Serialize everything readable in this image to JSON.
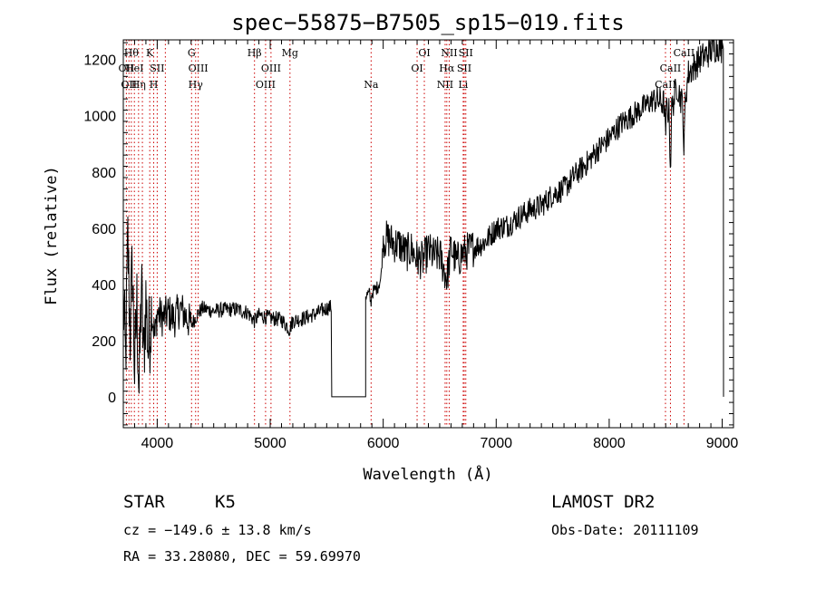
{
  "chart_data": {
    "type": "line",
    "title": "spec−55875−B7505_sp15−019.fits",
    "xlabel": "Wavelength (Å)",
    "ylabel": "Flux (relative)",
    "xlim": [
      3700,
      9100
    ],
    "ylim": [
      -110,
      1270
    ],
    "xticks": [
      4000,
      5000,
      6000,
      7000,
      8000,
      9000
    ],
    "yticks": [
      0,
      200,
      400,
      600,
      800,
      1000,
      1200
    ],
    "grid": false,
    "spectrum_anchors": [
      [
        3700,
        350
      ],
      [
        3720,
        120
      ],
      [
        3740,
        560
      ],
      [
        3760,
        220
      ],
      [
        3780,
        470
      ],
      [
        3800,
        90
      ],
      [
        3820,
        330
      ],
      [
        3840,
        10
      ],
      [
        3860,
        400
      ],
      [
        3880,
        130
      ],
      [
        3900,
        350
      ],
      [
        3920,
        170
      ],
      [
        3950,
        310
      ],
      [
        3980,
        210
      ],
      [
        4000,
        300
      ],
      [
        4050,
        280
      ],
      [
        4100,
        300
      ],
      [
        4150,
        275
      ],
      [
        4200,
        315
      ],
      [
        4250,
        290
      ],
      [
        4300,
        255
      ],
      [
        4350,
        290
      ],
      [
        4400,
        315
      ],
      [
        4500,
        305
      ],
      [
        4600,
        310
      ],
      [
        4700,
        312
      ],
      [
        4800,
        300
      ],
      [
        4860,
        270
      ],
      [
        4900,
        290
      ],
      [
        5000,
        280
      ],
      [
        5100,
        275
      ],
      [
        5170,
        240
      ],
      [
        5200,
        270
      ],
      [
        5300,
        280
      ],
      [
        5400,
        295
      ],
      [
        5500,
        315
      ],
      [
        5540,
        320
      ]
    ],
    "gap": {
      "start": 5545,
      "end": 5845,
      "value": 0
    },
    "spectrum_anchors_red": [
      [
        5845,
        360
      ],
      [
        5900,
        370
      ],
      [
        5950,
        390
      ],
      [
        5980,
        420
      ],
      [
        6000,
        560
      ],
      [
        6050,
        560
      ],
      [
        6100,
        545
      ],
      [
        6150,
        540
      ],
      [
        6200,
        510
      ],
      [
        6250,
        525
      ],
      [
        6300,
        490
      ],
      [
        6350,
        485
      ],
      [
        6400,
        520
      ],
      [
        6450,
        500
      ],
      [
        6500,
        505
      ],
      [
        6563,
        420
      ],
      [
        6600,
        530
      ],
      [
        6650,
        480
      ],
      [
        6700,
        510
      ],
      [
        6750,
        520
      ],
      [
        6800,
        530
      ],
      [
        6900,
        550
      ],
      [
        7000,
        600
      ],
      [
        7100,
        610
      ],
      [
        7200,
        640
      ],
      [
        7300,
        665
      ],
      [
        7400,
        680
      ],
      [
        7500,
        720
      ],
      [
        7600,
        740
      ],
      [
        7700,
        790
      ],
      [
        7800,
        830
      ],
      [
        7900,
        880
      ],
      [
        8000,
        920
      ],
      [
        8100,
        970
      ],
      [
        8200,
        1000
      ],
      [
        8300,
        1030
      ],
      [
        8400,
        1060
      ],
      [
        8498,
        1040
      ],
      [
        8542,
        1000
      ],
      [
        8600,
        1110
      ],
      [
        8662,
        1020
      ],
      [
        8700,
        1150
      ],
      [
        8800,
        1200
      ],
      [
        8900,
        1230
      ],
      [
        8960,
        1250
      ],
      [
        9000,
        1235
      ]
    ],
    "absorption_dips": [
      {
        "x": 4227,
        "depth": 80
      },
      {
        "x": 4300,
        "depth": 60
      },
      {
        "x": 5175,
        "depth": 50
      },
      {
        "x": 5890,
        "depth": 40
      },
      {
        "x": 8498,
        "depth": 120
      },
      {
        "x": 8542,
        "depth": 210
      },
      {
        "x": 8662,
        "depth": 170
      }
    ],
    "lines": [
      {
        "x": 3727,
        "label": "OII",
        "row": 1
      },
      {
        "x": 3750,
        "label": "OII",
        "row": 2
      },
      {
        "x": 3771,
        "label": "Hθ",
        "row": 0
      },
      {
        "x": 3798,
        "label": "HeI",
        "row": 1
      },
      {
        "x": 3835,
        "label": "Hη",
        "row": 2
      },
      {
        "x": 3869,
        "label": "",
        "row": 1
      },
      {
        "x": 3934,
        "label": "K",
        "row": 0
      },
      {
        "x": 3969,
        "label": "H",
        "row": 2
      },
      {
        "x": 4000,
        "label": "SII",
        "row": 1
      },
      {
        "x": 4072,
        "label": "",
        "row": 1
      },
      {
        "x": 4304,
        "label": "G",
        "row": 0
      },
      {
        "x": 4340,
        "label": "Hγ",
        "row": 2
      },
      {
        "x": 4363,
        "label": "OIII",
        "row": 1
      },
      {
        "x": 4861,
        "label": "Hβ",
        "row": 0
      },
      {
        "x": 4959,
        "label": "OIII",
        "row": 2
      },
      {
        "x": 5007,
        "label": "OIII",
        "row": 1
      },
      {
        "x": 5175,
        "label": "Mg",
        "row": 0
      },
      {
        "x": 5893,
        "label": "Na",
        "row": 2
      },
      {
        "x": 6300,
        "label": "OI",
        "row": 1
      },
      {
        "x": 6364,
        "label": "OI",
        "row": 0
      },
      {
        "x": 6548,
        "label": "NII",
        "row": 2
      },
      {
        "x": 6563,
        "label": "Hα",
        "row": 1
      },
      {
        "x": 6584,
        "label": "NII",
        "row": 0
      },
      {
        "x": 6708,
        "label": "Li",
        "row": 2
      },
      {
        "x": 6717,
        "label": "SII",
        "row": 1
      },
      {
        "x": 6731,
        "label": "SII",
        "row": 0
      },
      {
        "x": 8498,
        "label": "CaII",
        "row": 2
      },
      {
        "x": 8542,
        "label": "CaII",
        "row": 1
      },
      {
        "x": 8662,
        "label": "CaII",
        "row": 0
      }
    ],
    "line_color": "#000000",
    "marker_color": "#cc0000"
  },
  "info": {
    "class": "STAR",
    "subclass": "K5",
    "survey": "LAMOST DR2",
    "cz": "cz = −149.6 ± 13.8 km/s",
    "obs_date": "Obs-Date: 20111109",
    "coords": "RA =  33.28080, DEC =  59.69970"
  }
}
